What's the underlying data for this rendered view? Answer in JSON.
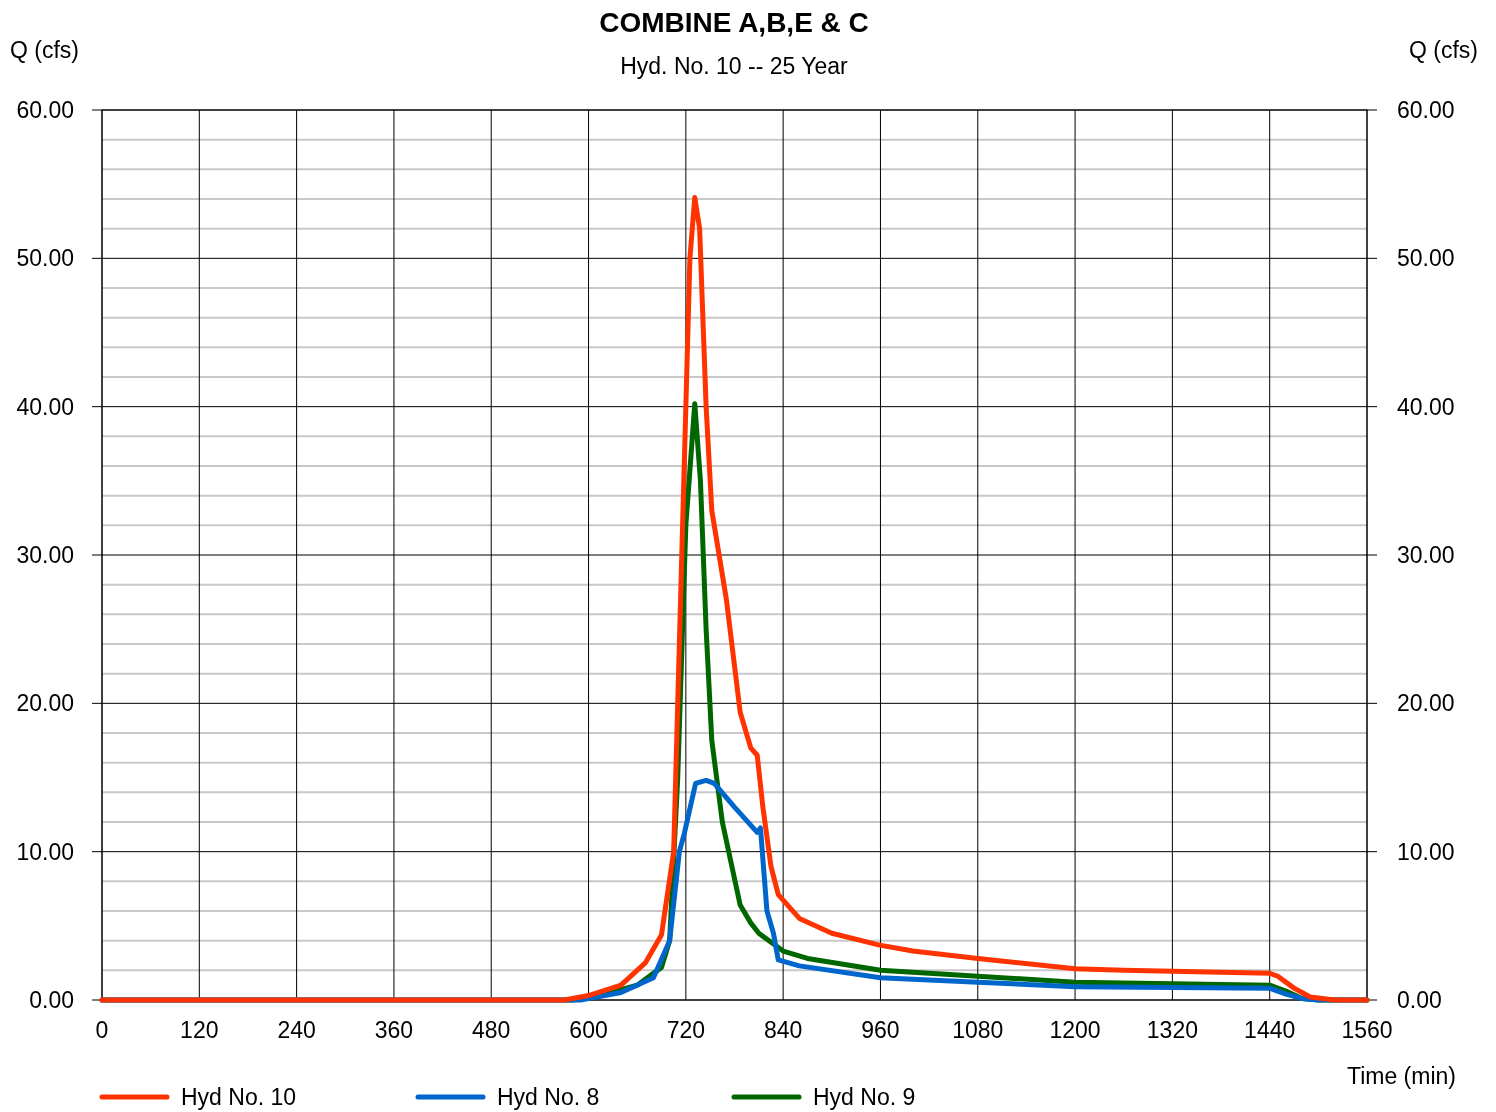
{
  "chart_data": {
    "type": "line",
    "title": "COMBINE A,B,E & C",
    "subtitle": "Hyd. No. 10 -- 25 Year",
    "xlabel": "Time (min)",
    "ylabel": "Q (cfs)",
    "y2label": "Q (cfs)",
    "xlim": [
      0,
      1560
    ],
    "xticks": [
      0,
      120,
      240,
      360,
      480,
      600,
      720,
      840,
      960,
      1080,
      1200,
      1320,
      1440,
      1560
    ],
    "ylim": [
      0,
      60
    ],
    "yticks": [
      {
        "value": 0,
        "label": "0.00"
      },
      {
        "value": 2,
        "label": null
      },
      {
        "value": 4,
        "label": null
      },
      {
        "value": 6,
        "label": null
      },
      {
        "value": 8,
        "label": null
      },
      {
        "value": 10,
        "label": "10.00"
      },
      {
        "value": 12,
        "label": null
      },
      {
        "value": 14,
        "label": null
      },
      {
        "value": 16,
        "label": null
      },
      {
        "value": 18,
        "label": null
      },
      {
        "value": 20,
        "label": "20.00"
      },
      {
        "value": 22,
        "label": null
      },
      {
        "value": 24,
        "label": null
      },
      {
        "value": 26,
        "label": null
      },
      {
        "value": 28,
        "label": null
      },
      {
        "value": 30,
        "label": "30.00"
      },
      {
        "value": 32,
        "label": null
      },
      {
        "value": 34,
        "label": null
      },
      {
        "value": 36,
        "label": null
      },
      {
        "value": 38,
        "label": null
      },
      {
        "value": 40,
        "label": "40.00"
      },
      {
        "value": 42,
        "label": null
      },
      {
        "value": 44,
        "label": null
      },
      {
        "value": 46,
        "label": null
      },
      {
        "value": 48,
        "label": null
      },
      {
        "value": 50,
        "label": "50.00"
      },
      {
        "value": 52,
        "label": null
      },
      {
        "value": 54,
        "label": null
      },
      {
        "value": 56,
        "label": null
      },
      {
        "value": 58,
        "label": null
      },
      {
        "value": 60,
        "label": "60.00"
      }
    ],
    "y2lim": [
      0,
      60
    ],
    "y2ticks": [
      {
        "value": 0,
        "label": "0.00"
      },
      {
        "value": 10,
        "label": "10.00"
      },
      {
        "value": 20,
        "label": "20.00"
      },
      {
        "value": 30,
        "label": "30.00"
      },
      {
        "value": 40,
        "label": "40.00"
      },
      {
        "value": 50,
        "label": "50.00"
      },
      {
        "value": 60,
        "label": "60.00"
      }
    ],
    "grid": true,
    "legend": "bottom",
    "marker": "none",
    "line_style": "solid",
    "series": [
      {
        "name": "Hyd No. 10",
        "color": "#ff3300",
        "x": [
          0,
          570,
          600,
          640,
          670,
          690,
          705,
          715,
          725,
          731,
          737,
          745,
          752,
          770,
          787,
          800,
          808,
          815,
          825,
          834,
          860,
          900,
          959,
          1000,
          1080,
          1200,
          1260,
          1440,
          1450,
          1470,
          1490,
          1520,
          1560
        ],
        "values": [
          0,
          0,
          0.3,
          1.0,
          2.5,
          4.4,
          10,
          30,
          50,
          54.1,
          52,
          40,
          33,
          27,
          19.4,
          17,
          16.5,
          13,
          9,
          7.1,
          5.5,
          4.5,
          3.7,
          3.3,
          2.8,
          2.1,
          2.0,
          1.8,
          1.6,
          0.8,
          0.2,
          0,
          0
        ]
      },
      {
        "name": "Hyd No. 8",
        "color": "#0066cc",
        "x": [
          0,
          590,
          640,
          680,
          700,
          712,
          718,
          732,
          745,
          755,
          780,
          808,
          812,
          820,
          828,
          834,
          860,
          960,
          1080,
          1200,
          1440,
          1460,
          1480,
          1500,
          1560
        ],
        "values": [
          0,
          0,
          0.5,
          1.5,
          4,
          10,
          11.2,
          14.6,
          14.8,
          14.6,
          13,
          11.3,
          11.6,
          6,
          4.5,
          2.7,
          2.3,
          1.5,
          1.2,
          0.9,
          0.8,
          0.4,
          0.1,
          0,
          0
        ]
      },
      {
        "name": "Hyd No. 9",
        "color": "#006600",
        "x": [
          0,
          580,
          620,
          660,
          690,
          700,
          710,
          720,
          731,
          738,
          745,
          752,
          765,
          787,
          800,
          810,
          840,
          870,
          960,
          1080,
          1200,
          1440,
          1460,
          1480,
          1500,
          1560
        ],
        "values": [
          0,
          0,
          0.4,
          1.0,
          2.2,
          4,
          15,
          32,
          40.2,
          35,
          25,
          17.5,
          12,
          6.4,
          5.2,
          4.5,
          3.3,
          2.8,
          2.0,
          1.6,
          1.2,
          1.0,
          0.6,
          0.1,
          0,
          0
        ]
      }
    ]
  }
}
